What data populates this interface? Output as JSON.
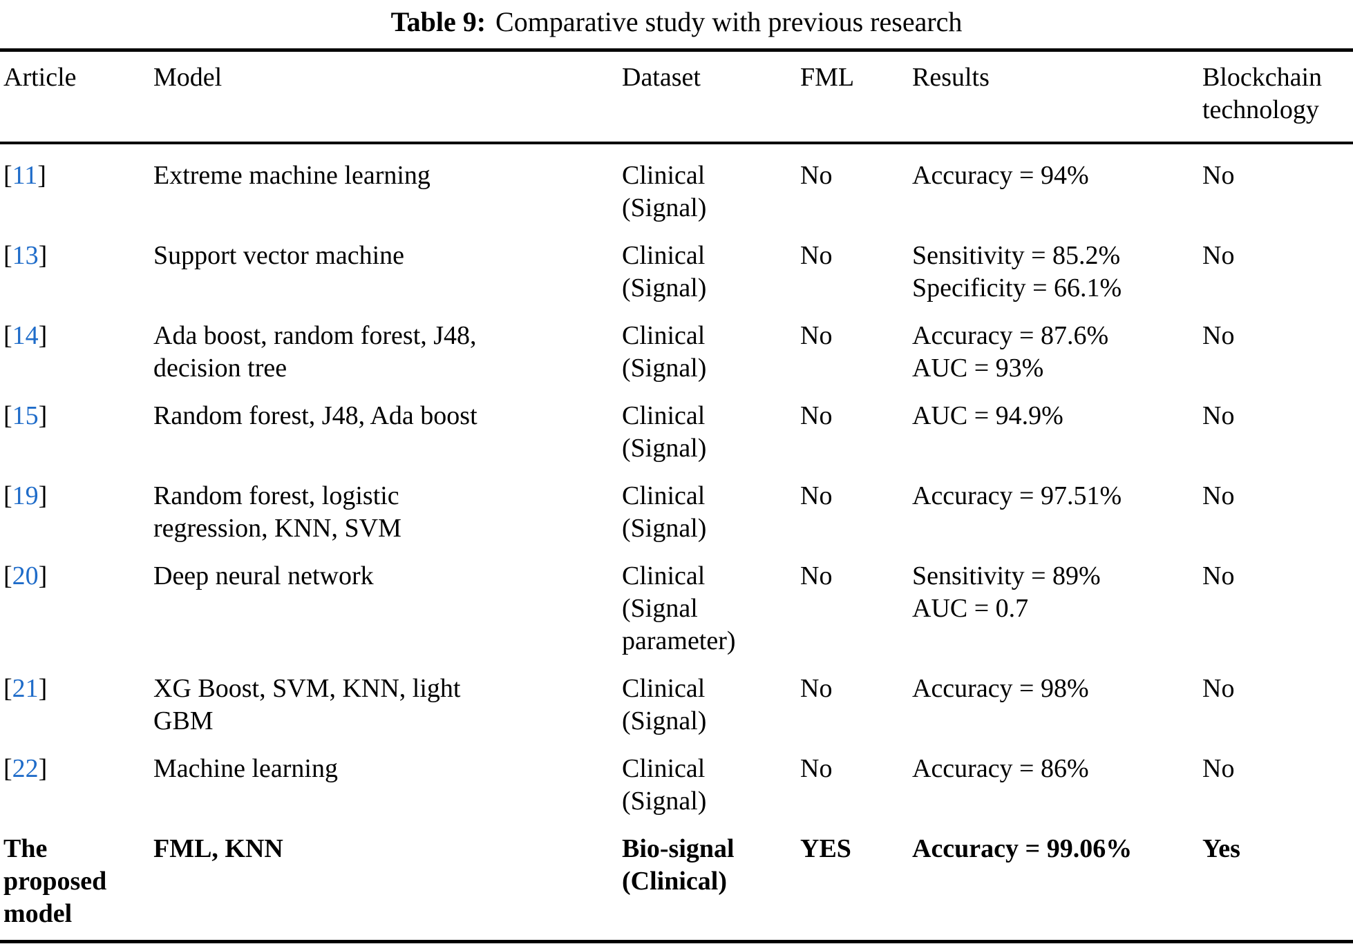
{
  "caption": {
    "label": "Table 9:",
    "text": "Comparative study with previous research"
  },
  "columns": [
    "Article",
    "Model",
    "Dataset",
    "FML",
    "Results",
    "Blockchain\ntechnology"
  ],
  "rows": [
    {
      "article": {
        "open": "[",
        "num": "11",
        "close": "]"
      },
      "model": "Extreme machine learning",
      "dataset": "Clinical\n(Signal)",
      "fml": "No",
      "results": "Accuracy = 94%",
      "blockchain": "No"
    },
    {
      "article": {
        "open": "[",
        "num": "13",
        "close": "]"
      },
      "model": "Support vector machine",
      "dataset": "Clinical\n(Signal)",
      "fml": "No",
      "results": "Sensitivity = 85.2%\nSpecificity = 66.1%",
      "blockchain": "No"
    },
    {
      "article": {
        "open": "[",
        "num": "14",
        "close": "]"
      },
      "model": "Ada boost, random forest, J48,\ndecision tree",
      "dataset": "Clinical\n(Signal)",
      "fml": "No",
      "results": "Accuracy = 87.6%\nAUC = 93%",
      "blockchain": "No"
    },
    {
      "article": {
        "open": "[",
        "num": "15",
        "close": "]"
      },
      "model": "Random forest, J48, Ada boost",
      "dataset": "Clinical\n(Signal)",
      "fml": "No",
      "results": "AUC = 94.9%",
      "blockchain": "No"
    },
    {
      "article": {
        "open": "[",
        "num": "19",
        "close": "]"
      },
      "model": "Random forest, logistic\nregression, KNN, SVM",
      "dataset": "Clinical\n(Signal)",
      "fml": "No",
      "results": "Accuracy = 97.51%",
      "blockchain": "No"
    },
    {
      "article": {
        "open": "[",
        "num": "20",
        "close": "]"
      },
      "model": "Deep neural network",
      "dataset": "Clinical\n(Signal\nparameter)",
      "fml": "No",
      "results": "Sensitivity = 89%\nAUC = 0.7",
      "blockchain": "No"
    },
    {
      "article": {
        "open": "[",
        "num": "21",
        "close": "]"
      },
      "model": "XG Boost, SVM, KNN, light\nGBM",
      "dataset": "Clinical\n(Signal)",
      "fml": "No",
      "results": "Accuracy = 98%",
      "blockchain": "No"
    },
    {
      "article": {
        "open": "[",
        "num": "22",
        "close": "]"
      },
      "model": "Machine learning",
      "dataset": "Clinical\n(Signal)",
      "fml": "No",
      "results": "Accuracy = 86%",
      "blockchain": "No"
    },
    {
      "article": {
        "text": "The\nproposed\nmodel"
      },
      "model": "FML, KNN",
      "dataset": "Bio-signal\n(Clinical)",
      "fml": "YES",
      "results": "Accuracy = 99.06%",
      "blockchain": "Yes"
    }
  ],
  "colors": {
    "citation_blue": "#1f6cc9",
    "text": "#000000",
    "rule": "#000000"
  }
}
